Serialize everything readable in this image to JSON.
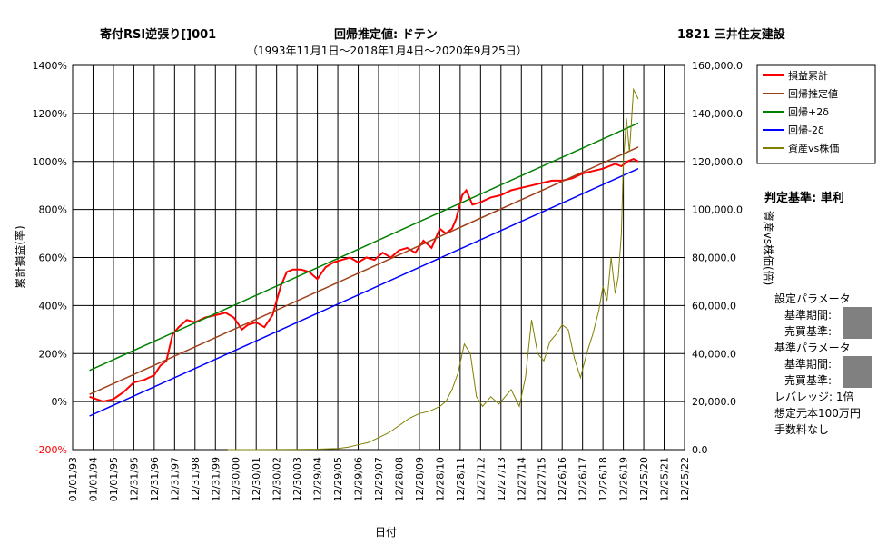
{
  "header": {
    "strategy": "寄付RSI逆張り[]001",
    "method": "回帰推定値: ドテン",
    "period": "（1993年11月1日～2018年1月4日～2020年9月25日）",
    "stock": "1821 三井住友建設"
  },
  "side_panel": {
    "judge": "判定基準: 単利",
    "params_title": "設定パラメータ",
    "period_label": "基準期間:",
    "trade_label": "売買基準:",
    "base_title": "基準パラメータ",
    "base_period_label": "基準期間:",
    "base_trade_label": "売買基準:",
    "leverage": "レバレッジ: 1倍",
    "capital": "想定元本100万円",
    "fee": "手数料なし"
  },
  "colors": {
    "cumulative": "#ff0000",
    "regression": "#a0401a",
    "upper": "#008000",
    "lower": "#0000ff",
    "asset_vs_price": "#808000",
    "neg_tick": "#ff0000",
    "redacted": "#808080"
  },
  "chart_data": {
    "type": "line",
    "xlabel": "日付",
    "ylabel": "累計損益(率)",
    "y2label": "資産vs株価(倍)",
    "ylim": [
      -200,
      1400
    ],
    "y2lim": [
      0,
      160000
    ],
    "y_ticks": [
      "-200%",
      "0%",
      "200%",
      "400%",
      "600%",
      "800%",
      "1000%",
      "1200%",
      "1400%"
    ],
    "y2_ticks": [
      "0.0",
      "20,000.0",
      "40,000.0",
      "60,000.0",
      "80,000.0",
      "100,000.0",
      "120,000.0",
      "140,000.0",
      "160,000.0"
    ],
    "x_ticks": [
      "01/01/93",
      "01/01/94",
      "01/01/95",
      "12/31/95",
      "12/31/96",
      "12/31/97",
      "12/31/98",
      "12/31/99",
      "12/30/00",
      "12/30/01",
      "12/30/02",
      "12/30/03",
      "12/29/04",
      "12/29/05",
      "12/29/06",
      "12/29/07",
      "12/28/08",
      "12/28/09",
      "12/28/10",
      "12/28/11",
      "12/27/12",
      "12/27/13",
      "12/27/14",
      "12/27/15",
      "12/26/16",
      "12/26/17",
      "12/26/18",
      "12/26/19",
      "12/25/20",
      "12/25/21",
      "12/25/22"
    ],
    "legend": [
      "損益累計",
      "回帰推定値",
      "回帰+2δ",
      "回帰-2δ",
      "資産vs株価"
    ],
    "legend_position": "top-right",
    "grid": true,
    "series": [
      {
        "name": "損益累計",
        "axis": "left",
        "x": [
          1993.83,
          1994.5,
          1995.0,
          1995.5,
          1996.0,
          1996.5,
          1997.0,
          1997.3,
          1997.6,
          1997.9,
          1998.2,
          1998.6,
          1999.0,
          1999.5,
          2000.0,
          2000.5,
          2000.9,
          2001.3,
          2001.6,
          2002.0,
          2002.4,
          2002.8,
          2003.2,
          2003.5,
          2003.8,
          2004.2,
          2004.6,
          2005.0,
          2005.4,
          2005.8,
          2006.2,
          2006.6,
          2007.0,
          2007.4,
          2007.8,
          2008.2,
          2008.6,
          2009.0,
          2009.4,
          2009.8,
          2010.2,
          2010.6,
          2011.0,
          2011.3,
          2011.6,
          2011.8,
          2012.1,
          2012.3,
          2012.6,
          2013.0,
          2013.5,
          2014.0,
          2014.5,
          2015.0,
          2015.5,
          2016.0,
          2016.5,
          2017.0,
          2017.5,
          2018.0,
          2018.5,
          2019.0,
          2019.3,
          2019.6,
          2019.9,
          2020.2,
          2020.5,
          2020.73
        ],
        "values": [
          20,
          0,
          10,
          40,
          80,
          90,
          110,
          150,
          170,
          280,
          310,
          340,
          330,
          350,
          360,
          370,
          350,
          300,
          320,
          330,
          310,
          360,
          480,
          540,
          550,
          550,
          540,
          510,
          560,
          580,
          590,
          600,
          580,
          600,
          590,
          620,
          600,
          630,
          640,
          620,
          670,
          640,
          720,
          700,
          720,
          760,
          860,
          880,
          820,
          830,
          850,
          860,
          880,
          890,
          900,
          910,
          920,
          920,
          930,
          950,
          960,
          970,
          980,
          990,
          980,
          1000,
          1010,
          1000
        ]
      },
      {
        "name": "回帰推定値",
        "axis": "left",
        "x": [
          1993.83,
          2020.73
        ],
        "values": [
          30,
          1060
        ]
      },
      {
        "name": "回帰+2δ",
        "axis": "left",
        "x": [
          1993.83,
          2020.73
        ],
        "values": [
          130,
          1160
        ]
      },
      {
        "name": "回帰-2δ",
        "axis": "left",
        "x": [
          1993.83,
          2020.73
        ],
        "values": [
          -60,
          970
        ]
      },
      {
        "name": "資産vs株価",
        "axis": "right",
        "x": [
          2000.6,
          2002.0,
          2004.0,
          2005.0,
          2006.0,
          2006.5,
          2007.0,
          2007.5,
          2008.0,
          2008.5,
          2009.0,
          2009.5,
          2010.0,
          2010.5,
          2011.0,
          2011.3,
          2011.6,
          2011.9,
          2012.2,
          2012.5,
          2012.8,
          2013.1,
          2013.5,
          2013.9,
          2014.2,
          2014.5,
          2014.9,
          2015.2,
          2015.5,
          2015.8,
          2016.1,
          2016.4,
          2016.7,
          2017.0,
          2017.3,
          2017.6,
          2017.9,
          2018.2,
          2018.5,
          2018.8,
          2019.0,
          2019.2,
          2019.4,
          2019.6,
          2019.75,
          2019.9,
          2020.0,
          2020.15,
          2020.3,
          2020.5,
          2020.73
        ],
        "values": [
          0,
          0,
          100,
          200,
          500,
          1000,
          2000,
          3000,
          5000,
          7000,
          10000,
          13000,
          15000,
          16000,
          18000,
          20000,
          25000,
          32000,
          44000,
          40000,
          22000,
          18000,
          22000,
          19000,
          22000,
          25000,
          18000,
          30000,
          54000,
          40000,
          37000,
          45000,
          48000,
          52000,
          50000,
          38000,
          30000,
          40000,
          48000,
          58000,
          68000,
          62000,
          80000,
          65000,
          72000,
          90000,
          120000,
          138000,
          124000,
          150000,
          146000
        ]
      }
    ]
  }
}
